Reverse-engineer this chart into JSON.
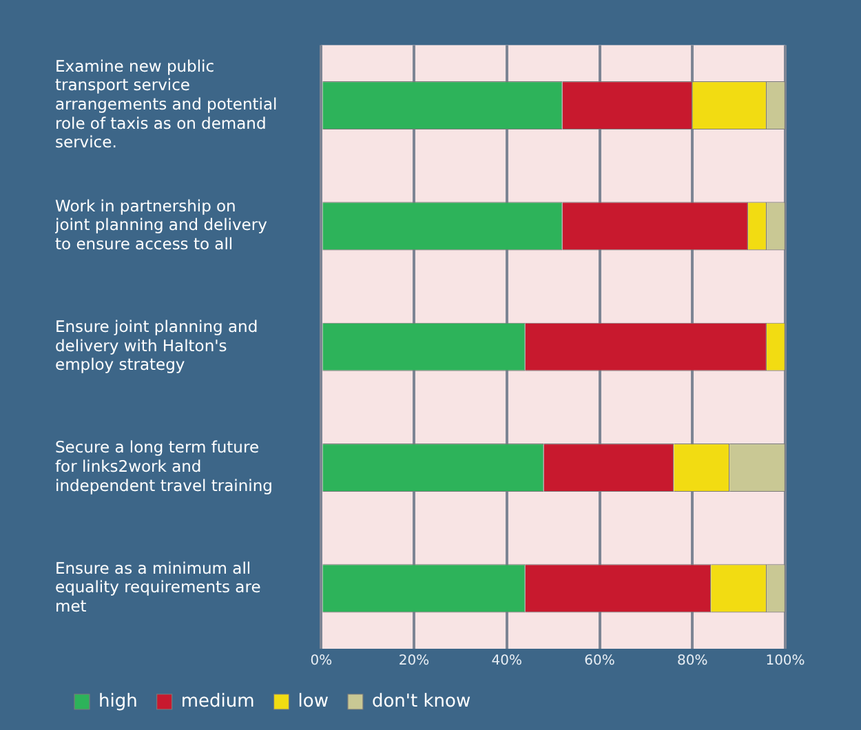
{
  "chart_data": {
    "type": "bar",
    "orientation": "horizontal",
    "stacked": true,
    "categories": [
      "Examine new public transport service arrangements and potential role of taxis as on demand service.",
      "Work in partnership on joint planning and delivery to ensure access to all",
      "Ensure joint planning and delivery with Halton's employ strategy",
      "Secure a long term future for links2work and independent travel training",
      "Ensure as a minimum all equality requirements are met"
    ],
    "series": [
      {
        "name": "high",
        "color": "#2db35a",
        "values": [
          52,
          52,
          44,
          48,
          44
        ]
      },
      {
        "name": "medium",
        "color": "#c8192e",
        "values": [
          28,
          40,
          52,
          28,
          40
        ]
      },
      {
        "name": "low",
        "color": "#f2dc12",
        "values": [
          16,
          4,
          4,
          12,
          12
        ]
      },
      {
        "name": "don't know",
        "color": "#c9c894",
        "values": [
          4,
          4,
          0,
          12,
          4
        ]
      }
    ],
    "xlim": [
      0,
      100
    ],
    "xticks": [
      {
        "value": 0,
        "label": "0%"
      },
      {
        "value": 20,
        "label": "20%"
      },
      {
        "value": 40,
        "label": "40%"
      },
      {
        "value": 60,
        "label": "60%"
      },
      {
        "value": 80,
        "label": "80%"
      },
      {
        "value": 100,
        "label": "100%"
      }
    ],
    "grid": "x",
    "legend": "bottom"
  }
}
